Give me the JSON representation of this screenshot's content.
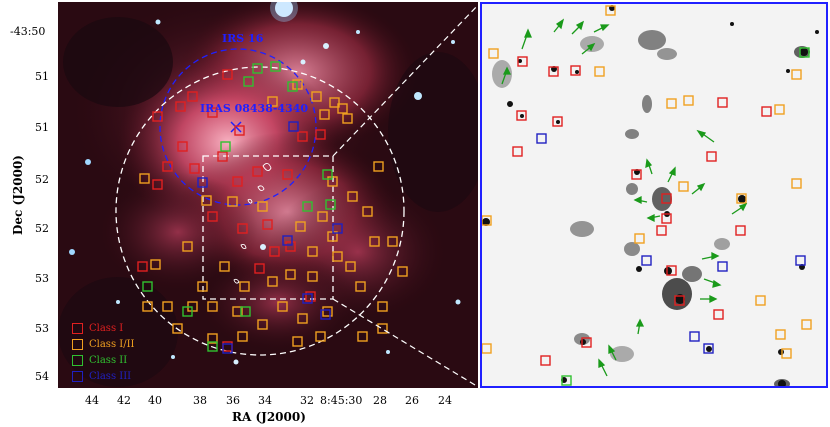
{
  "axes": {
    "dec_title": "Dec (J2000)",
    "ra_title": "RA (J2000)",
    "dec_ticks": [
      "-43:50",
      "51",
      "51",
      "52",
      "52",
      "53",
      "53",
      "54"
    ],
    "ra_ticks": [
      "44",
      "42",
      "40",
      "38",
      "36",
      "34",
      "32",
      "8:45:30",
      "28",
      "26",
      "24"
    ]
  },
  "annotations": {
    "irs16": "IRS 16",
    "iras": "IRAS 08438-4340"
  },
  "legend": [
    {
      "label": "Class I",
      "color": "#e02020"
    },
    {
      "label": "Class I/II",
      "color": "#f0a020"
    },
    {
      "label": "Class II",
      "color": "#30c030"
    },
    {
      "label": "Class III",
      "color": "#2020c0"
    }
  ],
  "colors": {
    "class_i": "#e02020",
    "class_i_ii": "#f0a020",
    "class_ii": "#30c030",
    "class_iii": "#2020c0",
    "zoom_frame": "#2020ff",
    "arrow": "#1a9a1a"
  }
}
